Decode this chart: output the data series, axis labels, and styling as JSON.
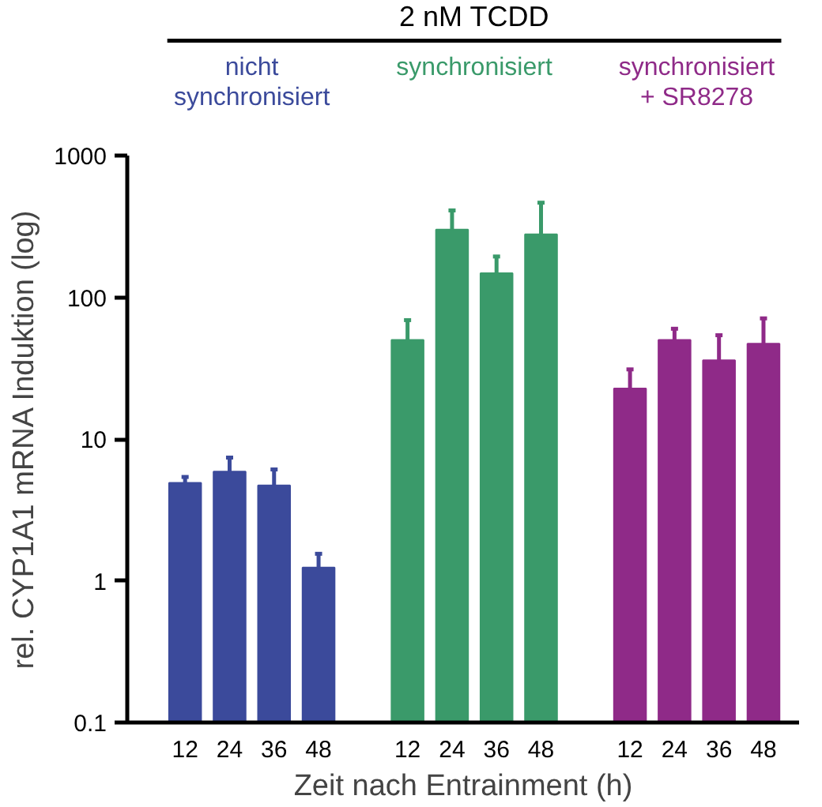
{
  "chart_data": {
    "type": "bar",
    "xlabel": "Zeit nach Entrainment (h)",
    "ylabel": "rel. CYP1A1 mRNA Induktion (log)",
    "categories": [
      "12",
      "24",
      "36",
      "48",
      null,
      "12",
      "24",
      "36",
      "48",
      null,
      "12",
      "24",
      "36",
      "48"
    ],
    "values": [
      4.9,
      5.9,
      4.7,
      1.24,
      null,
      50,
      300,
      148,
      278,
      null,
      22.7,
      50,
      36,
      47
    ],
    "errors": [
      [
        4.9,
        5.4
      ],
      [
        5.9,
        7.4
      ],
      [
        4.7,
        6.1
      ],
      [
        1.24,
        1.55
      ],
      null,
      [
        50,
        69
      ],
      [
        300,
        410
      ],
      [
        148,
        194
      ],
      [
        278,
        465
      ],
      null,
      [
        22.7,
        31
      ],
      [
        50,
        60
      ],
      [
        36,
        54
      ],
      [
        47,
        71
      ]
    ],
    "colors": [
      "#3b4a9b",
      "#3b4a9b",
      "#3b4a9b",
      "#3b4a9b",
      null,
      "#3a9a6a",
      "#3a9a6a",
      "#3a9a6a",
      "#3a9a6a",
      null,
      "#8f2a88",
      "#8f2a88",
      "#8f2a88",
      "#8f2a88"
    ],
    "annotations": [
      "2 nM TCDD",
      "nicht\nsynchronisiert",
      "synchronisiert",
      "synchronisiert\n+ SR8278"
    ],
    "log": true,
    "ylim": [
      0.1,
      1000
    ],
    "yticks": [
      0.1,
      1,
      10,
      100,
      1000
    ],
    "grid": false
  }
}
